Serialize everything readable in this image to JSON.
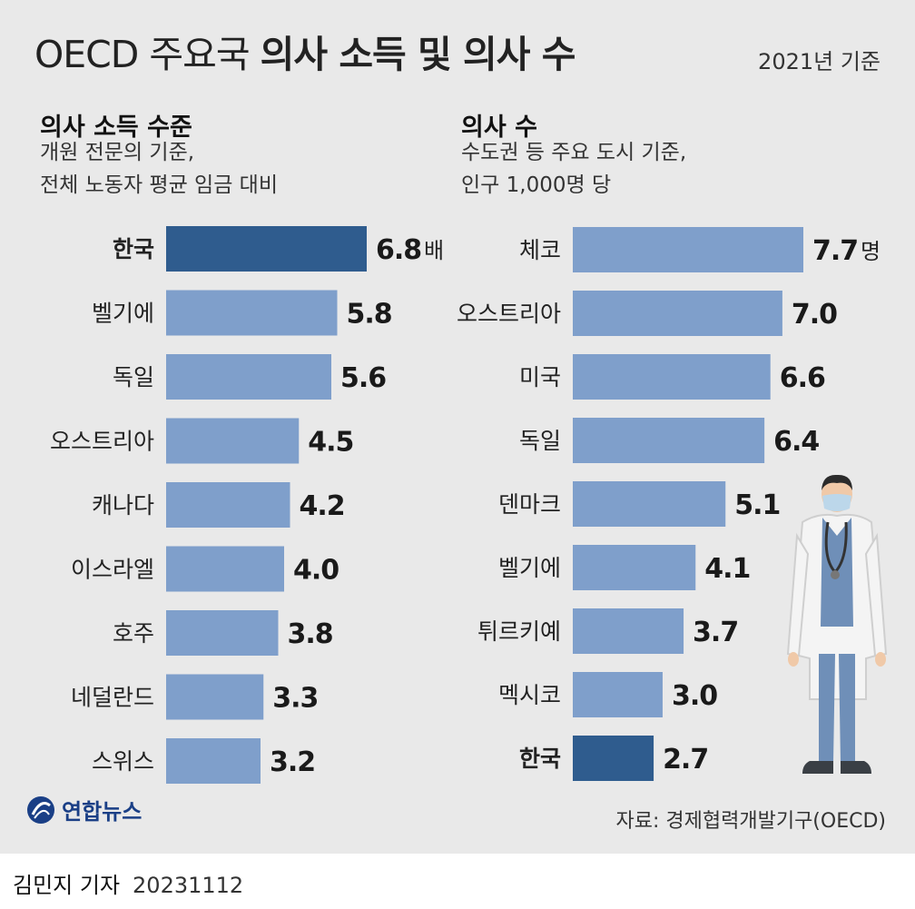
{
  "header": {
    "title_light": "OECD 주요국 ",
    "title_bold": "의사 소득 및 의사 수",
    "as_of": "2021년 기준"
  },
  "chart_data": [
    {
      "type": "bar",
      "orientation": "horizontal",
      "title": "의사 소득 수준",
      "subtitle_lines": [
        "개원 전문의 기준,",
        "전체 노동자 평균 임금 대비"
      ],
      "categories": [
        "한국",
        "벨기에",
        "독일",
        "오스트리아",
        "캐나다",
        "이스라엘",
        "호주",
        "네덜란드",
        "스위스"
      ],
      "values": [
        6.8,
        5.8,
        5.6,
        4.5,
        4.2,
        4.0,
        3.8,
        3.3,
        3.2
      ],
      "value_labels": [
        "6.8",
        "5.8",
        "5.6",
        "4.5",
        "4.2",
        "4.0",
        "3.8",
        "3.3",
        "3.2"
      ],
      "unit": "배",
      "highlight": "한국",
      "colors": {
        "bar": "#7f9fcb",
        "highlight": "#2f5c8e"
      }
    },
    {
      "type": "bar",
      "orientation": "horizontal",
      "title": "의사 수",
      "subtitle_lines": [
        "수도권 등 주요 도시 기준,",
        "인구 1,000명 당"
      ],
      "categories": [
        "체코",
        "오스트리아",
        "미국",
        "독일",
        "덴마크",
        "벨기에",
        "튀르키예",
        "멕시코",
        "한국"
      ],
      "values": [
        7.7,
        7.0,
        6.6,
        6.4,
        5.1,
        4.1,
        3.7,
        3.0,
        2.7
      ],
      "value_labels": [
        "7.7",
        "7.0",
        "6.6",
        "6.4",
        "5.1",
        "4.1",
        "3.7",
        "3.0",
        "2.7"
      ],
      "unit": "명",
      "highlight": "한국",
      "colors": {
        "bar": "#7f9fcb",
        "highlight": "#2f5c8e"
      }
    }
  ],
  "footer": {
    "logo_text": "연합뉴스",
    "source": "자료: 경제협력개발기구(OECD)"
  },
  "byline": {
    "reporter": "김민지 기자",
    "date": "20231112"
  }
}
